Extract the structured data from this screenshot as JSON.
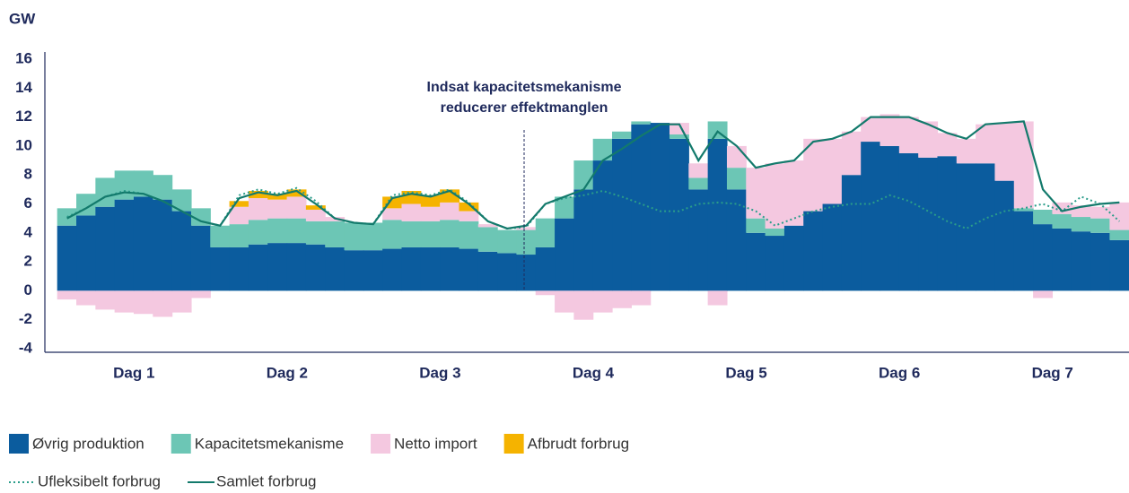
{
  "chart_data": {
    "type": "stacked_step_area",
    "y_unit": "GW",
    "annotation": [
      "Indsat kapacitetsmekanisme",
      "reducerer effektmanglen"
    ],
    "categories": [
      null,
      null,
      null,
      null,
      "Dag 1",
      null,
      null,
      null,
      null,
      null,
      null,
      null,
      "Dag 2",
      null,
      null,
      null,
      null,
      null,
      null,
      null,
      "Dag 3",
      null,
      null,
      null,
      null,
      null,
      null,
      null,
      "Dag 4",
      null,
      null,
      null,
      null,
      null,
      null,
      null,
      "Dag 5",
      null,
      null,
      null,
      null,
      null,
      null,
      null,
      "Dag 6",
      null,
      null,
      null,
      null,
      null,
      null,
      null,
      "Dag 7",
      null,
      null,
      null
    ],
    "series": [
      {
        "name": "Øvrig produktion",
        "color": "#0b5c9e",
        "values": [
          4.5,
          5.2,
          5.8,
          6.3,
          6.5,
          6.3,
          5.5,
          4.5,
          3,
          3,
          3.2,
          3.3,
          3.3,
          3.2,
          3,
          2.8,
          2.8,
          2.9,
          3,
          3,
          3,
          2.9,
          2.7,
          2.6,
          2.5,
          3,
          5,
          7,
          9,
          10.5,
          11.5,
          11.6,
          10.5,
          7,
          10.5,
          7,
          4,
          3.8,
          4.5,
          5.5,
          6,
          8,
          10.3,
          10,
          9.5,
          9.2,
          9.3,
          8.8,
          8.8,
          7.6,
          5.5,
          4.6,
          4.3,
          4.1,
          4,
          3.5
        ]
      },
      {
        "name": "Kapacitetsmekanisme",
        "color": "#6cc6b5",
        "values": [
          1.2,
          1.5,
          2,
          2,
          1.8,
          1.7,
          1.5,
          1.2,
          1.5,
          1.6,
          1.7,
          1.7,
          1.7,
          1.6,
          1.8,
          1.9,
          1.9,
          2,
          1.8,
          1.8,
          1.9,
          1.9,
          1.7,
          1.6,
          1.7,
          2,
          1.5,
          2,
          1.5,
          0.5,
          0.2,
          0,
          0.3,
          0.8,
          1.2,
          1.5,
          1,
          0.5,
          0,
          0,
          0,
          0,
          0,
          0,
          0,
          0,
          0,
          0,
          0,
          0,
          0.2,
          1,
          1,
          1,
          1,
          0.7
        ]
      },
      {
        "name": "Netto import",
        "color": "#f4c8e0",
        "values": [
          -0.6,
          -1,
          -1.3,
          -1.5,
          -1.6,
          -1.8,
          -1.5,
          -0.5,
          0,
          1.2,
          1.5,
          1.3,
          1.5,
          0.8,
          0.3,
          0,
          0,
          0.8,
          1.2,
          1,
          1.2,
          0.7,
          0.2,
          0,
          0.2,
          -0.3,
          -1.5,
          -2,
          -1.5,
          -1.2,
          -1,
          0,
          0.8,
          1,
          -1,
          1.5,
          3.5,
          4.5,
          4.5,
          5,
          4.5,
          3,
          1.7,
          2.2,
          2.5,
          2.5,
          1.6,
          1.7,
          2.7,
          4,
          6,
          -0.5,
          0.8,
          0.8,
          0.8,
          1.9
        ]
      },
      {
        "name": "Afbrudt forbrug",
        "color": "#f5b300",
        "values": [
          0,
          0,
          0,
          0,
          0,
          0,
          0,
          0,
          0,
          0.4,
          0.5,
          0.4,
          0.5,
          0.3,
          0,
          0,
          0,
          0.8,
          0.9,
          0.8,
          0.9,
          0.6,
          0,
          0,
          0,
          0,
          0,
          0,
          0,
          0,
          0,
          0,
          0,
          0,
          0,
          0,
          0,
          0,
          0,
          0,
          0,
          0,
          0,
          0,
          0,
          0,
          0,
          0,
          0,
          0,
          0,
          0,
          0,
          0,
          0,
          0
        ]
      }
    ],
    "lines": [
      {
        "name": "Ufleksibelt forbrug",
        "color": "#2a9d8a",
        "dash": "dotted",
        "values": [
          5.1,
          5.7,
          6.5,
          6.9,
          6.7,
          6.2,
          5.5,
          4.8,
          4.5,
          6.6,
          7,
          6.7,
          7.1,
          6.2,
          5,
          4.7,
          4.6,
          6.6,
          6.8,
          6.6,
          7,
          6.1,
          4.8,
          4.3,
          4.4,
          6,
          6.4,
          6.6,
          6.9,
          6.5,
          6,
          5.5,
          5.5,
          6,
          6.1,
          6,
          5.5,
          4.5,
          5,
          5.5,
          5.8,
          6,
          6,
          6.6,
          6.2,
          5.5,
          4.8,
          4.3,
          5,
          5.5,
          5.7,
          6,
          5.5,
          6.5,
          6,
          4.8
        ]
      },
      {
        "name": "Samlet forbrug",
        "color": "#137a6c",
        "dash": "solid",
        "values": [
          5,
          5.7,
          6.5,
          6.8,
          6.7,
          6.2,
          5.5,
          4.8,
          4.5,
          6.4,
          6.8,
          6.6,
          6.9,
          6,
          5,
          4.7,
          4.6,
          6.4,
          6.7,
          6.5,
          6.9,
          6,
          4.8,
          4.3,
          4.5,
          6,
          6.5,
          7,
          9,
          9.8,
          10.7,
          11.5,
          11.5,
          9,
          11,
          10,
          8.5,
          8.8,
          9,
          10.3,
          10.5,
          11,
          12,
          12,
          12,
          11.5,
          10.9,
          10.5,
          11.5,
          11.6,
          11.7,
          7,
          5.5,
          5.8,
          6,
          6.1
        ]
      }
    ],
    "ylim": [
      -4,
      16
    ],
    "yticks": [
      -4,
      -2,
      0,
      2,
      4,
      6,
      8,
      10,
      12,
      14,
      16
    ]
  }
}
